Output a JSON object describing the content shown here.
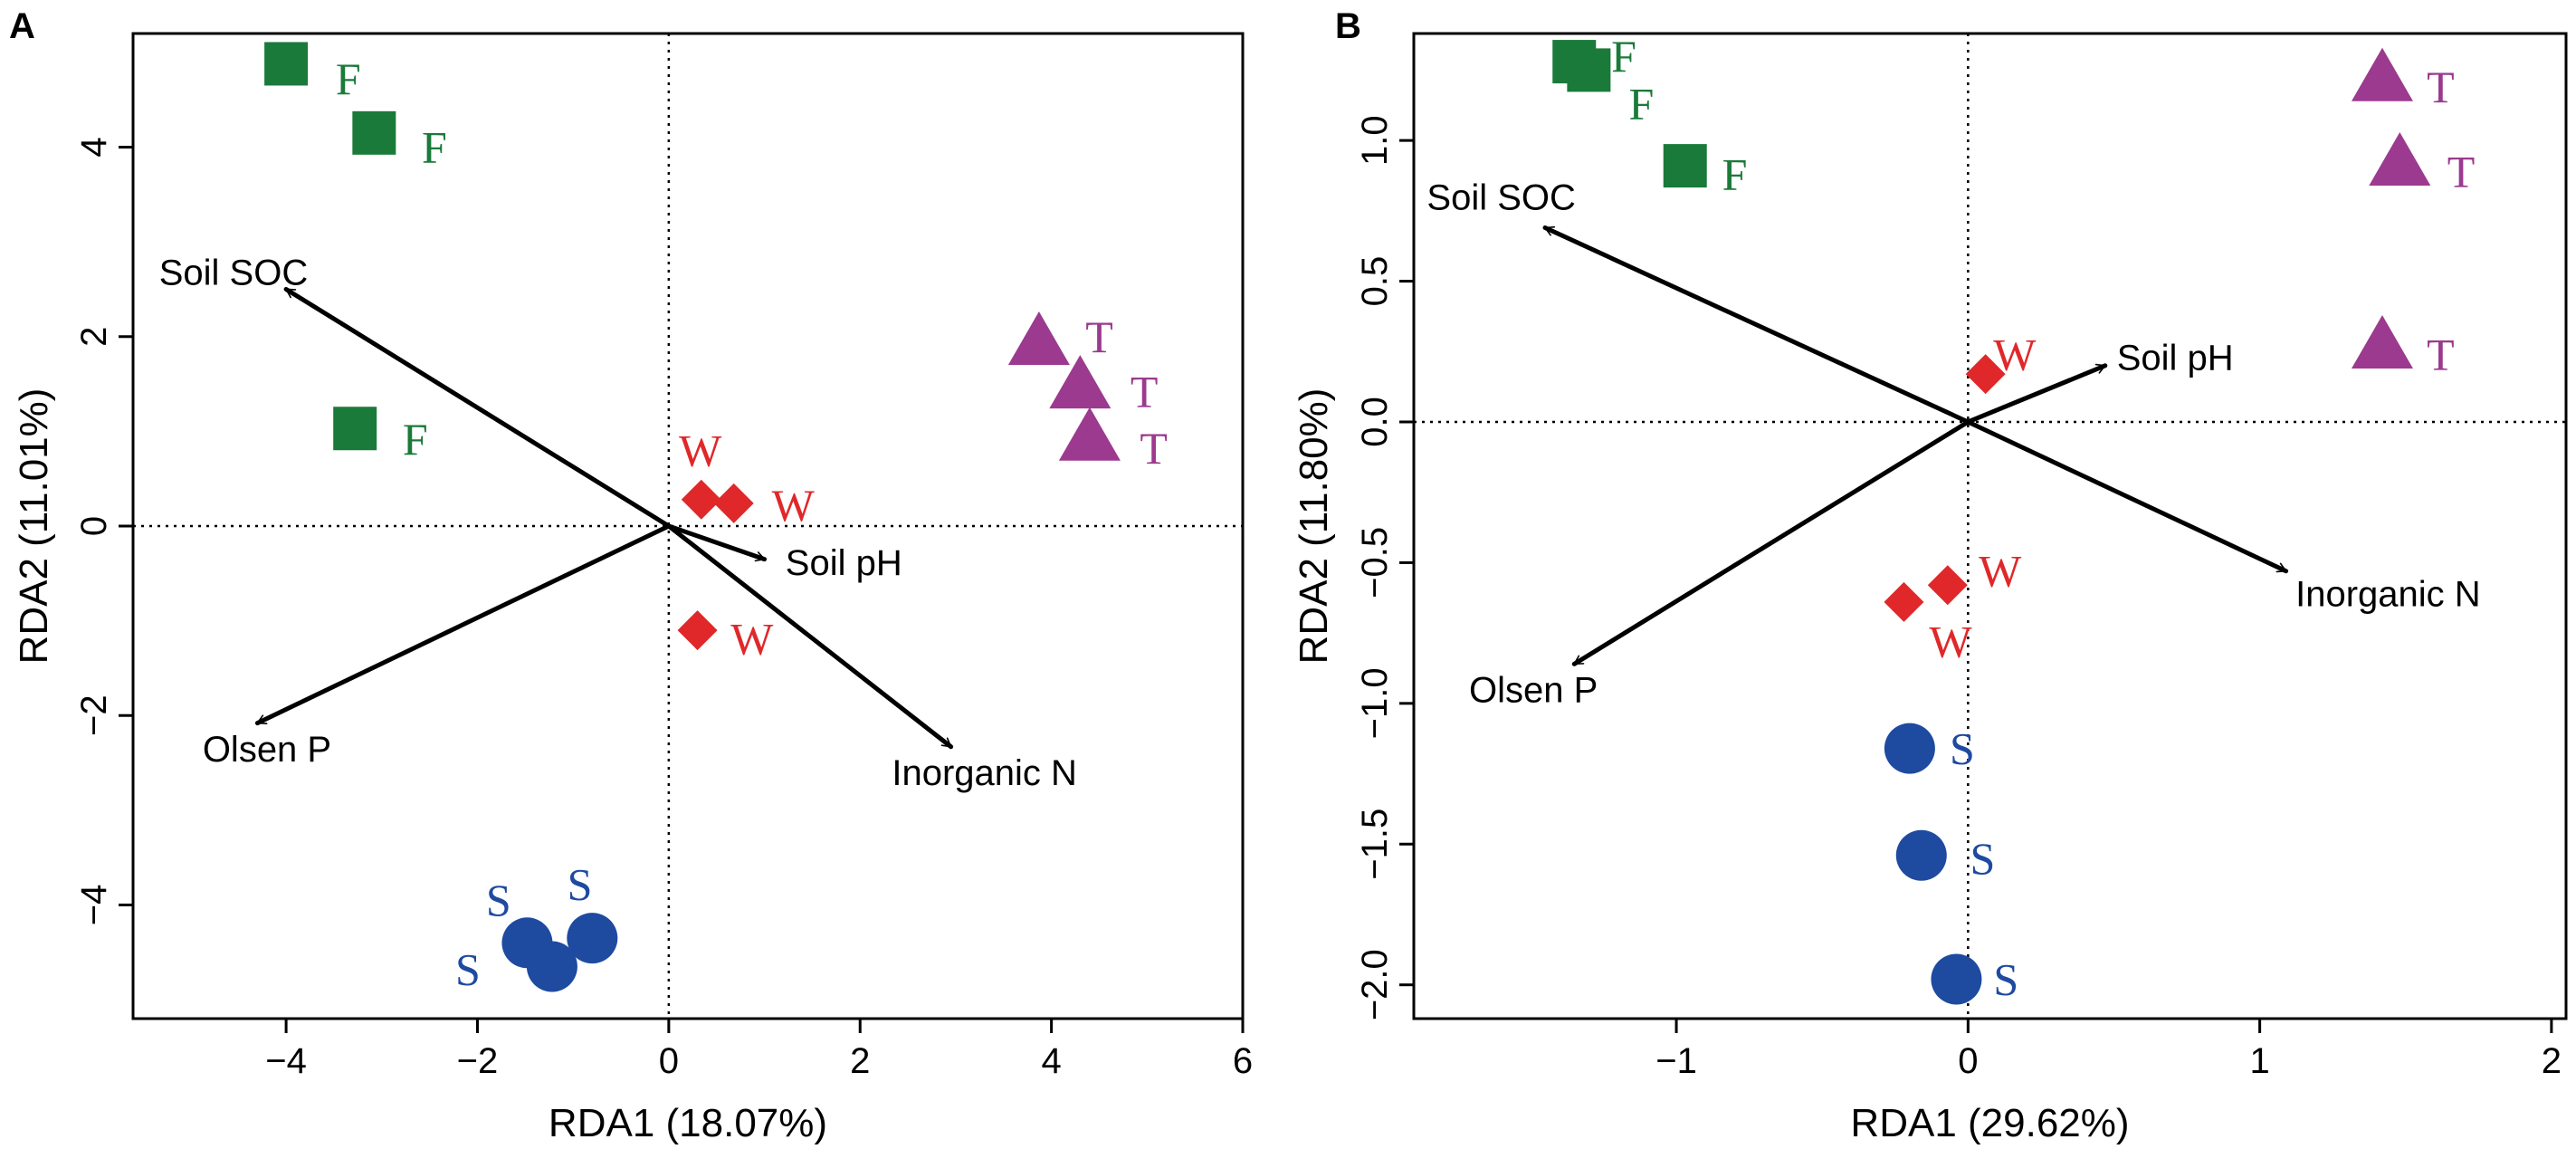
{
  "colors": {
    "F": "#1a7a3a",
    "T": "#9b3a8e",
    "W": "#e0282a",
    "S": "#1e4aa0"
  },
  "chart_data": [
    {
      "type": "scatter",
      "panel_label": "A",
      "xlabel": "RDA1 (18.07%)",
      "ylabel": "RDA2 (11.01%)",
      "xlim": [
        -5.6,
        6.0
      ],
      "ylim": [
        -5.2,
        5.2
      ],
      "xticks": [
        -4,
        -2,
        0,
        2,
        4,
        6
      ],
      "xtick_labels": [
        "−4",
        "−2",
        "0",
        "2",
        "4",
        "6"
      ],
      "yticks": [
        -4,
        -2,
        0,
        2,
        4
      ],
      "ytick_labels": [
        "−4",
        "−2",
        "0",
        "2",
        "4"
      ],
      "points": [
        {
          "group": "F",
          "x": -4.0,
          "y": 4.88,
          "label": "F",
          "lx": -3.35,
          "ly": 4.72
        },
        {
          "group": "F",
          "x": -3.08,
          "y": 4.15,
          "label": "F",
          "lx": -2.45,
          "ly": 4.0
        },
        {
          "group": "F",
          "x": -3.28,
          "y": 1.03,
          "label": "F",
          "lx": -2.65,
          "ly": 0.92
        },
        {
          "group": "T",
          "x": 3.87,
          "y": 1.94,
          "label": "T",
          "lx": 4.5,
          "ly": 2.0
        },
        {
          "group": "T",
          "x": 4.3,
          "y": 1.48,
          "label": "T",
          "lx": 4.97,
          "ly": 1.42
        },
        {
          "group": "T",
          "x": 4.4,
          "y": 0.93,
          "label": "T",
          "lx": 5.07,
          "ly": 0.82
        },
        {
          "group": "W",
          "x": 0.34,
          "y": 0.28,
          "label": "W",
          "lx": 0.33,
          "ly": 0.8
        },
        {
          "group": "W",
          "x": 0.68,
          "y": 0.24,
          "label": "W",
          "lx": 1.3,
          "ly": 0.22
        },
        {
          "group": "W",
          "x": 0.3,
          "y": -1.1,
          "label": "W",
          "lx": 0.87,
          "ly": -1.19
        },
        {
          "group": "S",
          "x": -1.48,
          "y": -4.4,
          "label": "S",
          "lx": -1.78,
          "ly": -3.95
        },
        {
          "group": "S",
          "x": -1.22,
          "y": -4.65,
          "label": "S",
          "lx": -2.1,
          "ly": -4.68
        },
        {
          "group": "S",
          "x": -0.8,
          "y": -4.35,
          "label": "S",
          "lx": -0.93,
          "ly": -3.78
        }
      ],
      "arrows": [
        {
          "name": "Soil SOC",
          "x": -4.0,
          "y": 2.5,
          "lx": -4.55,
          "ly": 2.68,
          "anchor": "middle"
        },
        {
          "name": "Olsen P",
          "x": -4.3,
          "y": -2.08,
          "lx": -4.2,
          "ly": -2.35,
          "anchor": "middle"
        },
        {
          "name": "Inorganic N",
          "x": 2.95,
          "y": -2.33,
          "lx": 3.3,
          "ly": -2.6,
          "anchor": "middle"
        },
        {
          "name": "Soil pH",
          "x": 1.0,
          "y": -0.35,
          "lx": 1.22,
          "ly": -0.38,
          "anchor": "start"
        }
      ]
    },
    {
      "type": "scatter",
      "panel_label": "B",
      "xlabel": "RDA1 (29.62%)",
      "ylabel": "RDA2 (11.80%)",
      "xlim": [
        -1.9,
        2.05
      ],
      "ylim": [
        -2.12,
        1.38
      ],
      "xticks": [
        -1,
        0,
        1,
        2
      ],
      "xtick_labels": [
        "−1",
        "0",
        "1",
        "2"
      ],
      "yticks": [
        -2.0,
        -1.5,
        -1.0,
        -0.5,
        0.0,
        0.5,
        1.0
      ],
      "ytick_labels": [
        "−2.0",
        "−1.5",
        "−1.0",
        "−0.5",
        "0.0",
        "0.5",
        "1.0"
      ],
      "points": [
        {
          "group": "F",
          "x": -1.35,
          "y": 1.28,
          "label": "F",
          "lx": -1.18,
          "ly": 1.3
        },
        {
          "group": "F",
          "x": -1.3,
          "y": 1.25,
          "label": "F",
          "lx": -1.12,
          "ly": 1.13
        },
        {
          "group": "F",
          "x": -0.97,
          "y": 0.91,
          "label": "F",
          "lx": -0.8,
          "ly": 0.88
        },
        {
          "group": "T",
          "x": 1.42,
          "y": 1.22,
          "label": "T",
          "lx": 1.62,
          "ly": 1.19
        },
        {
          "group": "T",
          "x": 1.48,
          "y": 0.92,
          "label": "T",
          "lx": 1.69,
          "ly": 0.89
        },
        {
          "group": "T",
          "x": 1.42,
          "y": 0.27,
          "label": "T",
          "lx": 1.62,
          "ly": 0.24
        },
        {
          "group": "W",
          "x": 0.06,
          "y": 0.17,
          "label": "W",
          "lx": 0.16,
          "ly": 0.24
        },
        {
          "group": "W",
          "x": -0.07,
          "y": -0.58,
          "label": "W",
          "lx": 0.11,
          "ly": -0.53
        },
        {
          "group": "W",
          "x": -0.22,
          "y": -0.64,
          "label": "W",
          "lx": -0.06,
          "ly": -0.78
        },
        {
          "group": "S",
          "x": -0.2,
          "y": -1.16,
          "label": "S",
          "lx": -0.02,
          "ly": -1.16
        },
        {
          "group": "S",
          "x": -0.16,
          "y": -1.54,
          "label": "S",
          "lx": 0.05,
          "ly": -1.55
        },
        {
          "group": "S",
          "x": -0.04,
          "y": -1.98,
          "label": "S",
          "lx": 0.13,
          "ly": -1.98
        }
      ],
      "arrows": [
        {
          "name": "Soil SOC",
          "x": -1.45,
          "y": 0.69,
          "lx": -1.6,
          "ly": 0.8,
          "anchor": "middle"
        },
        {
          "name": "Olsen P",
          "x": -1.35,
          "y": -0.86,
          "lx": -1.49,
          "ly": -0.95,
          "anchor": "middle"
        },
        {
          "name": "Inorganic N",
          "x": 1.09,
          "y": -0.53,
          "lx": 1.44,
          "ly": -0.61,
          "anchor": "middle"
        },
        {
          "name": "Soil pH",
          "x": 0.47,
          "y": 0.2,
          "lx": 0.51,
          "ly": 0.23,
          "anchor": "start"
        }
      ]
    }
  ]
}
